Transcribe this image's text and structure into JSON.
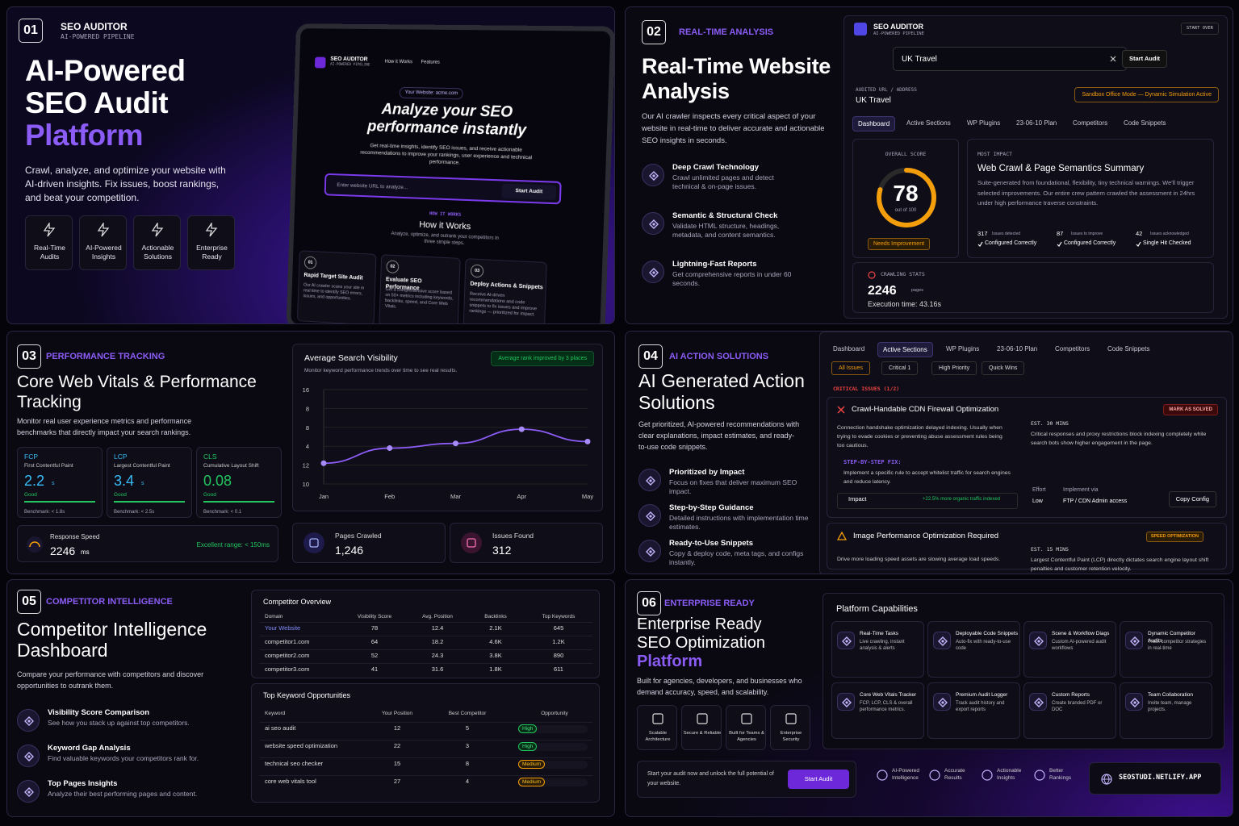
{
  "p1": {
    "number": "01",
    "brand": "SEO AUDITOR",
    "brand_sub": "AI-POWERED PIPELINE",
    "title": [
      "AI-Powered",
      "SEO Audit"
    ],
    "title_accent": "Platform",
    "description": "Crawl, analyze, and optimize your website with AI-driven insights. Fix issues, boost rankings, and beat your competition.",
    "features": [
      "Real-Time Audits",
      "AI-Powered Insights",
      "Actionable Solutions",
      "Enterprise Ready"
    ],
    "mockup": {
      "brand": "SEO AUDITOR",
      "brand_sub": "AI-POWERED PIPELINE",
      "nav": [
        "How it Works",
        "Features"
      ],
      "badge": "Your Website: acme.com",
      "headline": "Analyze your SEO performance instantly",
      "text": "Get real-time insights, identify SEO issues, and receive actionable recommendations to improve your rankings, user experience and technical performance.",
      "placeholder": "Enter website URL to analyze...",
      "button": "Start Audit",
      "how_label": "HOW IT WORKS",
      "how_title": "How it Works",
      "how_text": "Analyze, optimize, and outrank your competitors in three simple steps.",
      "steps": [
        {
          "num": "01",
          "title": "Rapid Target Site Audit",
          "text": "Our AI crawler scans your site in real time to identify SEO errors, issues, and opportunities."
        },
        {
          "num": "02",
          "title": "Evaluate SEO Performance",
          "text": "Get a comprehensive score based on 50+ metrics including keywords, backlinks, speed, and Core Web Vitals."
        },
        {
          "num": "03",
          "title": "Deploy Actions & Snippets",
          "text": "Receive AI-driven recommendations and code snippets to fix issues and improve rankings — prioritized for impact."
        }
      ]
    }
  },
  "p2": {
    "number": "02",
    "tag": "REAL-TIME ANALYSIS",
    "title": "Real-Time Website Analysis",
    "description": "Our AI crawler inspects every critical aspect of your website in real-time to deliver accurate and actionable SEO insights in seconds.",
    "features": [
      {
        "title": "Deep Crawl Technology",
        "text": "Crawl unlimited pages and detect technical & on-page issues."
      },
      {
        "title": "Semantic & Structural Check",
        "text": "Validate HTML structure, headings, metadata, and content semantics."
      },
      {
        "title": "Lightning-Fast Reports",
        "text": "Get comprehensive reports in under 60 seconds."
      }
    ],
    "app": {
      "brand": "SEO AUDITOR",
      "brand_sub": "AI-POWERED PIPELINE",
      "start_over": "START OVER",
      "input": "UK Travel",
      "button": "Start Audit",
      "audited_label": "AUDITED URL / ADDRESS",
      "audited": "UK Travel",
      "sandbox": "Sandbox Office Mode — Dynamic Simulation Active",
      "tabs": [
        "Dashboard",
        "Active Sections",
        "WP Plugins",
        "23-06-10 Plan",
        "Competitors",
        "Code Snippets"
      ],
      "score_label": "OVERALL SCORE",
      "score": 78,
      "score_out": "out of 100",
      "score_badge": "Needs Improvement",
      "impact_label": "MOST IMPACT",
      "impact_title": "Web Crawl & Page Semantics Summary",
      "impact_text": "Suite-generated from foundational, flexibility, tiny technical warnings. We'll trigger selected improvements. Our entire crew pattern crawled the assessment in 24hrs under high performance traverse constraints.",
      "stats": [
        {
          "num": 317,
          "label": "Issues detected",
          "check": "Configured Correctly"
        },
        {
          "num": 87,
          "label": "Issues to improve",
          "check": "Configured Correctly"
        },
        {
          "num": 42,
          "label": "Issues acknowledged",
          "check": "Single Hit Checked"
        }
      ],
      "crawl_label": "CRAWLING STATS",
      "crawl_value": 2246,
      "crawl_unit": "pages",
      "exec": "Execution time: 43.16s"
    }
  },
  "p3": {
    "number": "03",
    "tag": "PERFORMANCE TRACKING",
    "title": "Core Web Vitals & Performance Tracking",
    "description": "Monitor real user experience metrics and performance benchmarks that directly impact your search rankings.",
    "vitals": [
      {
        "abbr": "FCP",
        "name": "First Contentful Paint",
        "value": 2.2,
        "unit": "s",
        "status": "Good",
        "bench": "Benchmark: < 1.8s"
      },
      {
        "abbr": "LCP",
        "name": "Largest Contentful Paint",
        "value": 3.4,
        "unit": "s",
        "status": "Good",
        "bench": "Benchmark: < 2.5s"
      },
      {
        "abbr": "CLS",
        "name": "Cumulative Layout Shift",
        "value": "0.08",
        "status": "Good",
        "bench": "Benchmark: < 0.1"
      }
    ],
    "response": {
      "label": "Response Speed",
      "value": 2246,
      "unit": "ms",
      "range": "Excellent range: < 150ms"
    },
    "chart": {
      "type": "line",
      "title": "Average Search Visibility",
      "subtitle": "Monitor keyword performance trends over time to see real results.",
      "badge": "Average rank improved by 3 places",
      "categories": [
        "Jan",
        "Feb",
        "Mar",
        "Apr",
        "May"
      ],
      "values": [
        1.1,
        1.9,
        2.15,
        2.9,
        2.25
      ],
      "color": "#8b5cf6",
      "ylim": [
        0,
        5
      ],
      "yticks": [
        {
          "value": 0,
          "label": "10"
        },
        {
          "value": 1,
          "label": "12"
        },
        {
          "value": 2,
          "label": "4"
        },
        {
          "value": 3,
          "label": "8"
        },
        {
          "value": 4,
          "label": "8"
        },
        {
          "value": 5,
          "label": "16"
        }
      ],
      "grid": true
    },
    "cards": [
      {
        "label": "Pages Crawled",
        "value": "1,246"
      },
      {
        "label": "Issues Found",
        "value": 312
      }
    ]
  },
  "p4": {
    "number": "04",
    "tag": "AI ACTION SOLUTIONS",
    "title": "AI Generated Action Solutions",
    "description": "Get prioritized, AI-powered recommendations with clear explanations, impact estimates, and ready-to-use code snippets.",
    "features": [
      {
        "title": "Prioritized by Impact",
        "text": "Focus on fixes that deliver maximum SEO impact."
      },
      {
        "title": "Step-by-Step Guidance",
        "text": "Detailed instructions with implementation time estimates."
      },
      {
        "title": "Ready-to-Use Snippets",
        "text": "Copy & deploy code, meta tags, and configs instantly."
      }
    ],
    "app": {
      "tabs": [
        "Dashboard",
        "Active Sections",
        "WP Plugins",
        "23-06-10 Plan",
        "Competitors",
        "Code Snippets"
      ],
      "filters": [
        "All Issues",
        "Critical 1",
        "High Priority",
        "Quick Wins"
      ],
      "critical_label": "CRITICAL ISSUES (1/2)",
      "issue1": {
        "title": "Crawl-Handable CDN Firewall Optimization",
        "badge": "MARK AS SOLVED",
        "text": "Connection handshake optimization delayed indexing. Usually when trying to evade cookies or preventing abuse assessment rules being too cautious.",
        "est": "EST. 30 MINS",
        "est_text": "Critical responses and proxy restrictions block indexing completely while search bots show higher engagement in the page.",
        "step_label": "STEP-BY-STEP FIX:",
        "step_text": "Implement a specific rule to accept whitelist traffic for search engines and reduce latency.",
        "impact": "Impact",
        "impact_value": "+22.5% more organic traffic indexed",
        "effort_label": "Effort",
        "effort": "Low",
        "implement_label": "Implement via",
        "implement": "FTP / CDN Admin access",
        "copy": "Copy Config"
      },
      "issue2": {
        "title": "Image Performance Optimization Required",
        "badge": "SPEED OPTIMIZATION",
        "text": "Drive more loading speed assets are slowing average load speeds.",
        "est": "EST. 15 MINS",
        "est_text": "Largest Contentful Paint (LCP) directly dictates search engine layout shift penalties and customer retention velocity."
      }
    }
  },
  "p5": {
    "number": "05",
    "tag": "COMPETITOR INTELLIGENCE",
    "title": "Competitor Intelligence Dashboard",
    "description": "Compare your performance with competitors and discover opportunities to outrank them.",
    "features": [
      {
        "title": "Visibility Score Comparison",
        "text": "See how you stack up against top competitors."
      },
      {
        "title": "Keyword Gap Analysis",
        "text": "Find valuable keywords your competitors rank for."
      },
      {
        "title": "Top Pages Insights",
        "text": "Analyze their best performing pages and content."
      }
    ],
    "overview": {
      "title": "Competitor Overview",
      "headers": [
        "Domain",
        "Visibility Score",
        "Avg. Position",
        "Backlinks",
        "Top Keywords"
      ],
      "rows": [
        [
          "Your Website",
          78,
          12.4,
          "2.1K",
          645
        ],
        [
          "competitor1.com",
          64,
          18.2,
          "4.6K",
          "1.2K"
        ],
        [
          "competitor2.com",
          52,
          24.3,
          "3.8K",
          890
        ],
        [
          "competitor3.com",
          41,
          31.6,
          "1.8K",
          611
        ]
      ]
    },
    "keywords": {
      "title": "Top Keyword Opportunities",
      "headers": [
        "Keyword",
        "Your Position",
        "Best Competitor",
        "Opportunity"
      ],
      "rows": [
        [
          "ai seo audit",
          12,
          5,
          "High"
        ],
        [
          "website speed optimization",
          22,
          3,
          "High"
        ],
        [
          "technical seo checker",
          15,
          8,
          "Medium"
        ],
        [
          "core web vitals tool",
          27,
          4,
          "Medium"
        ]
      ]
    }
  },
  "p6": {
    "number": "06",
    "tag": "ENTERPRISE READY",
    "title": [
      "Enterprise Ready",
      "SEO Optimization"
    ],
    "title_accent": "Platform",
    "description": "Built for agencies, developers, and businesses who demand accuracy, speed, and scalability.",
    "features": [
      "Scalable Architecture",
      "Secure & Reliable",
      "Built for Teams & Agencies",
      "Enterprise Security"
    ],
    "cta": {
      "text": "Start your audit now and unlock the full potential of your website.",
      "button": "Start Audit"
    },
    "capabilities": {
      "title": "Platform Capabilities",
      "items": [
        {
          "title": "Real-Time Tasks",
          "text": "Live crawling, instant analysis & alerts"
        },
        {
          "title": "Deployable Code Snippets",
          "text": "Auto-fix with ready-to-use code"
        },
        {
          "title": "Scene & Workflow Diags",
          "text": "Custom AI-powered audit workflows"
        },
        {
          "title": "Dynamic Competitor Audits",
          "text": "Track competitor strategies in real-time"
        },
        {
          "title": "Core Web Vitals Tracker",
          "text": "FCP, LCP, CLS & overall performance metrics."
        },
        {
          "title": "Premium Audit Logger",
          "text": "Track audit history and export reports"
        },
        {
          "title": "Custom Reports",
          "text": "Create branded PDF or DOC"
        },
        {
          "title": "Team Collaboration",
          "text": "Invite team, manage projects."
        }
      ]
    },
    "footer": [
      "AI-Powered Intelligence",
      "Accurate Results",
      "Actionable Insights",
      "Better Rankings"
    ],
    "site": "SEOSTUDI.NETLIFY.APP"
  }
}
